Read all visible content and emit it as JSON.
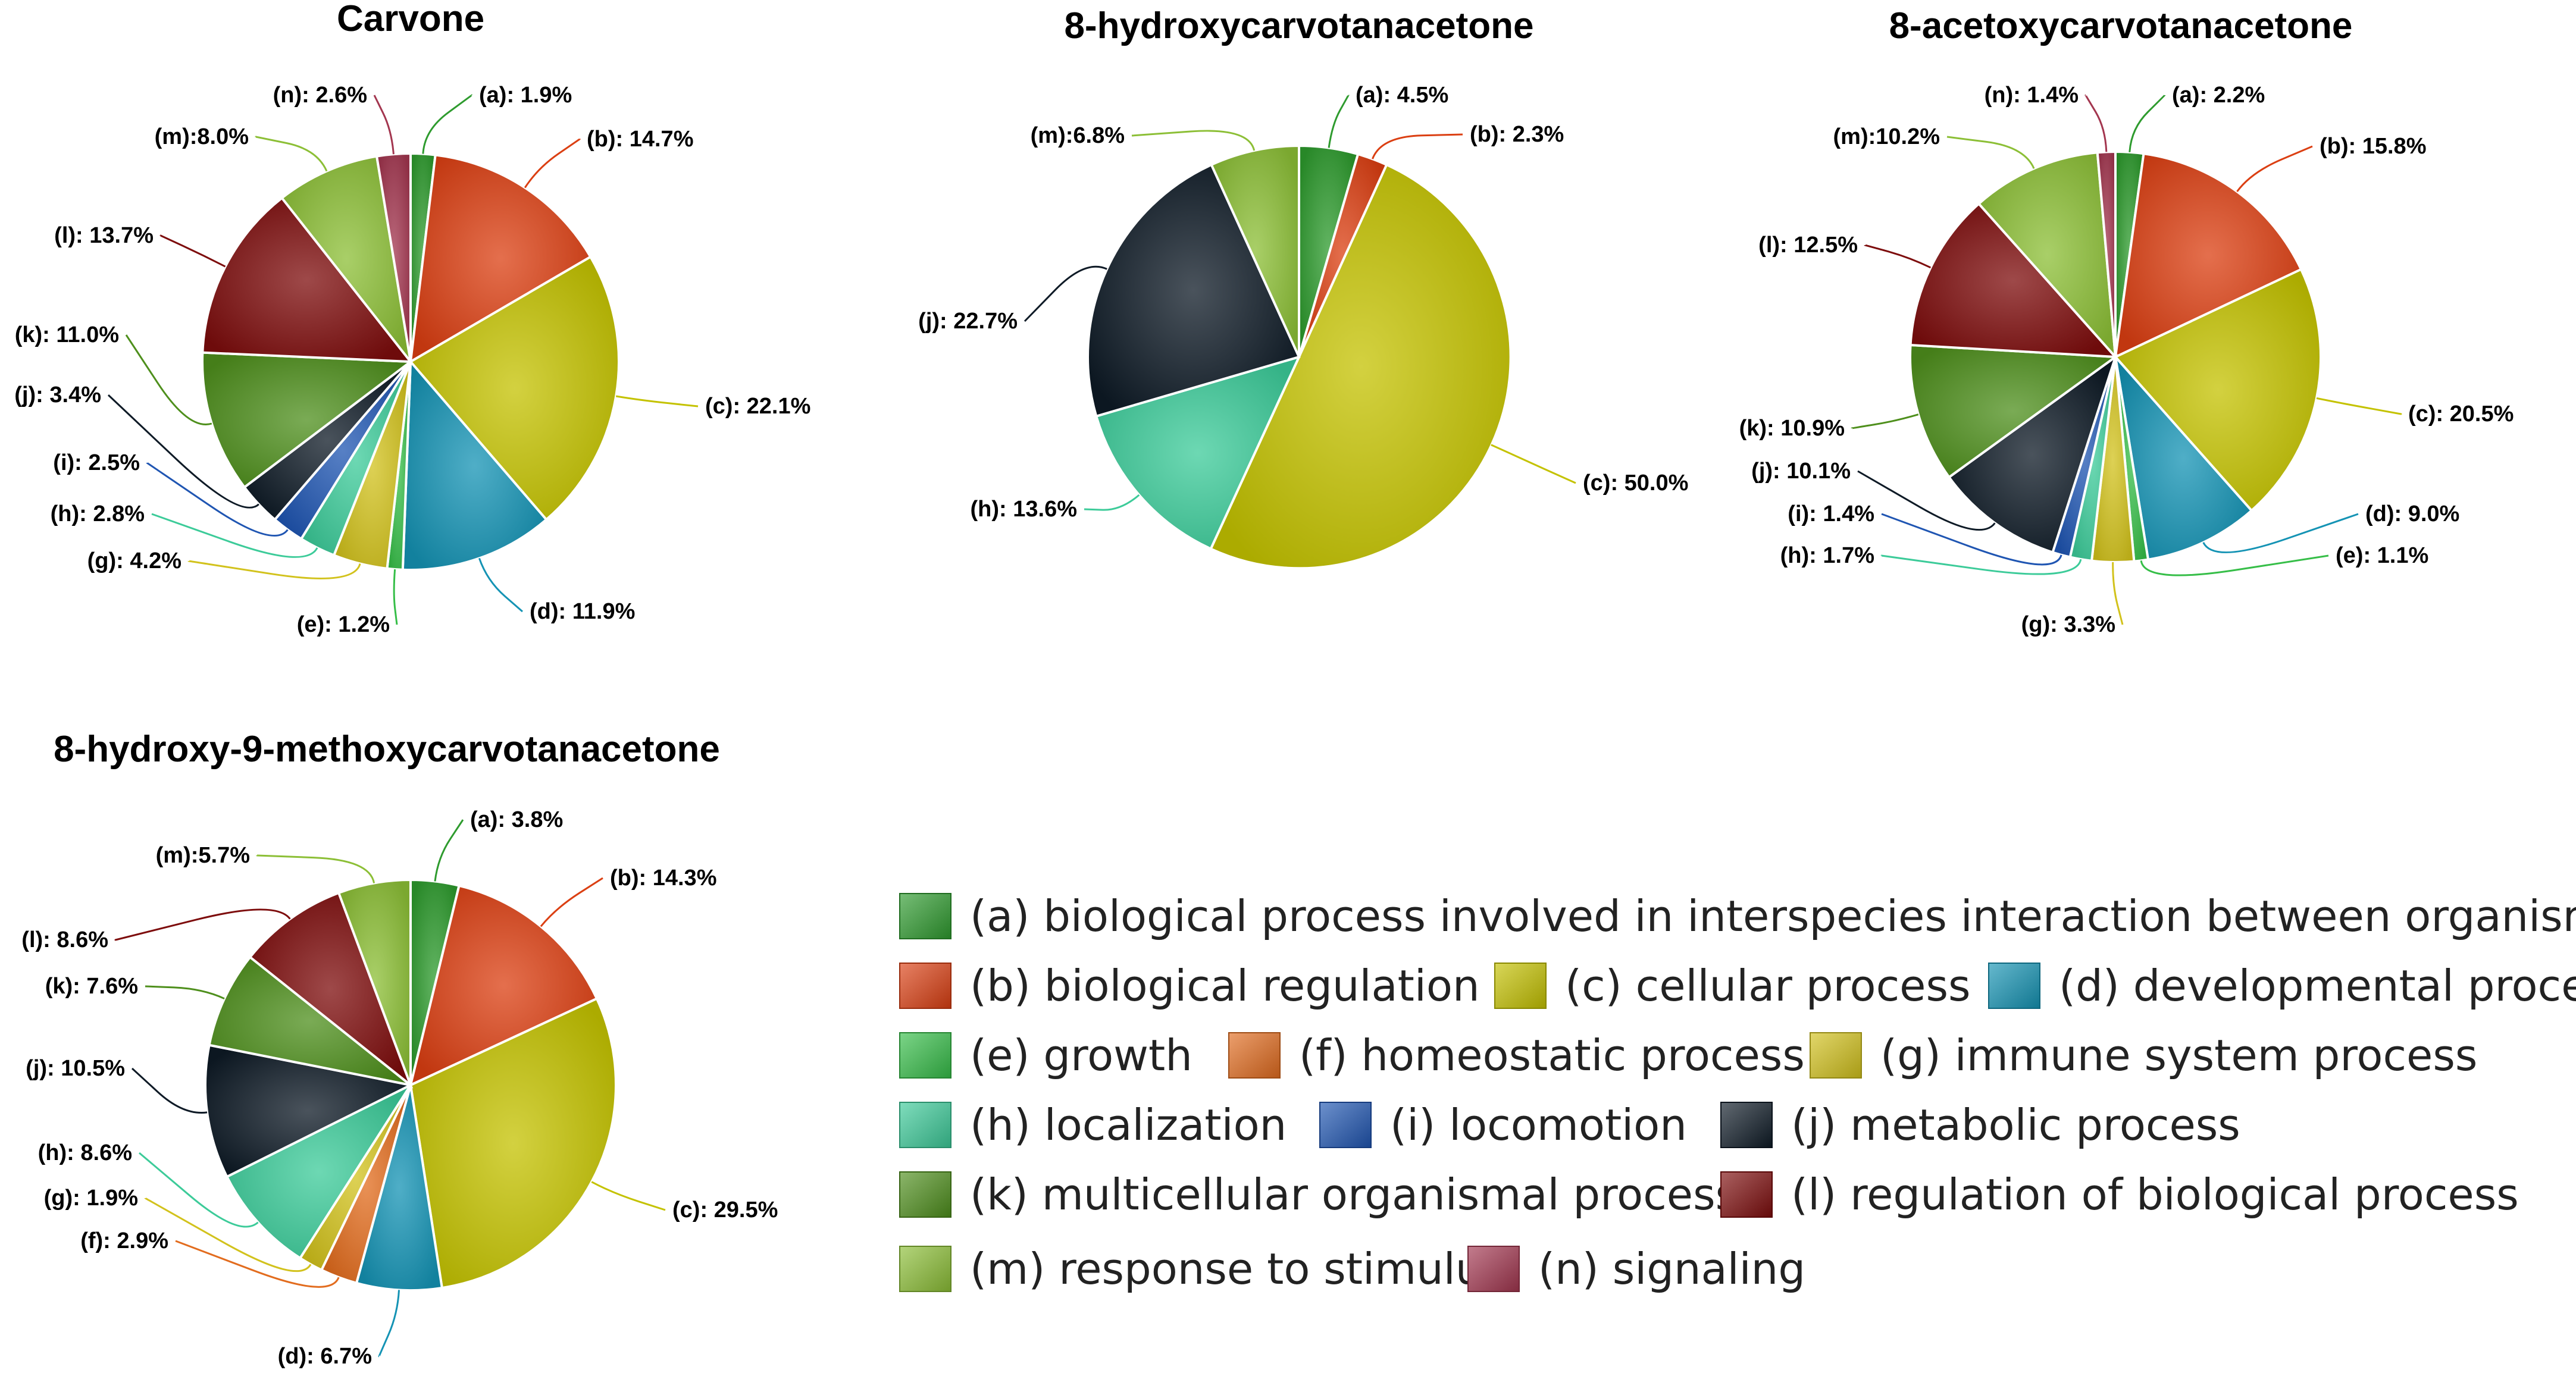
{
  "colors": {
    "a": "#2E9B2E",
    "b": "#DB3F12",
    "c": "#C4C200",
    "d": "#1493B4",
    "e": "#36BE48",
    "f": "#E26C1E",
    "g": "#D2C21C",
    "h": "#3CCB99",
    "i": "#1F55B2",
    "j": "#0E1A26",
    "k": "#4E8F1C",
    "l": "#7D0C0C",
    "m": "#8CBF36",
    "n": "#A3364F"
  },
  "legend": [
    {
      "key": "a",
      "label": "(a) biological process involved in interspecies interaction between organisms"
    },
    {
      "key": "b",
      "label": "(b) biological regulation"
    },
    {
      "key": "c",
      "label": "(c) cellular process"
    },
    {
      "key": "d",
      "label": "(d) developmental process"
    },
    {
      "key": "e",
      "label": "(e) growth"
    },
    {
      "key": "f",
      "label": "(f) homeostatic process"
    },
    {
      "key": "g",
      "label": "(g) immune system process"
    },
    {
      "key": "h",
      "label": "(h) localization"
    },
    {
      "key": "i",
      "label": "(i) locomotion"
    },
    {
      "key": "j",
      "label": "(j) metabolic process"
    },
    {
      "key": "k",
      "label": "(k) multicellular organismal process"
    },
    {
      "key": "l",
      "label": "(l) regulation of biological process"
    },
    {
      "key": "m",
      "label": "(m) response to stimulus"
    },
    {
      "key": "n",
      "label": "(n) signaling"
    }
  ],
  "chart_data": [
    {
      "type": "pie",
      "title": "Carvone",
      "slices": [
        {
          "key": "a",
          "value": 1.9,
          "label": "(a): 1.9%"
        },
        {
          "key": "b",
          "value": 14.7,
          "label": "(b): 14.7%"
        },
        {
          "key": "c",
          "value": 22.1,
          "label": "(c): 22.1%"
        },
        {
          "key": "d",
          "value": 11.9,
          "label": "(d): 11.9%"
        },
        {
          "key": "e",
          "value": 1.2,
          "label": "(e): 1.2%"
        },
        {
          "key": "g",
          "value": 4.2,
          "label": "(g): 4.2%"
        },
        {
          "key": "h",
          "value": 2.8,
          "label": "(h): 2.8%"
        },
        {
          "key": "i",
          "value": 2.5,
          "label": "(i): 2.5%"
        },
        {
          "key": "j",
          "value": 3.4,
          "label": "(j): 3.4%"
        },
        {
          "key": "k",
          "value": 11.0,
          "label": "(k): 11.0%"
        },
        {
          "key": "l",
          "value": 13.7,
          "label": "(l): 13.7%"
        },
        {
          "key": "m",
          "value": 8.0,
          "label": "(m):8.0%"
        },
        {
          "key": "n",
          "value": 2.6,
          "label": "(n): 2.6%"
        }
      ]
    },
    {
      "type": "pie",
      "title": "8-hydroxycarvotanacetone",
      "slices": [
        {
          "key": "a",
          "value": 4.5,
          "label": "(a): 4.5%"
        },
        {
          "key": "b",
          "value": 2.3,
          "label": "(b): 2.3%"
        },
        {
          "key": "c",
          "value": 50.0,
          "label": "(c): 50.0%"
        },
        {
          "key": "h",
          "value": 13.6,
          "label": "(h): 13.6%"
        },
        {
          "key": "j",
          "value": 22.7,
          "label": "(j): 22.7%"
        },
        {
          "key": "m",
          "value": 6.8,
          "label": "(m):6.8%"
        }
      ]
    },
    {
      "type": "pie",
      "title": "8-acetoxycarvotanacetone",
      "slices": [
        {
          "key": "a",
          "value": 2.2,
          "label": "(a): 2.2%"
        },
        {
          "key": "b",
          "value": 15.8,
          "label": "(b): 15.8%"
        },
        {
          "key": "c",
          "value": 20.5,
          "label": "(c): 20.5%"
        },
        {
          "key": "d",
          "value": 9.0,
          "label": "(d): 9.0%"
        },
        {
          "key": "e",
          "value": 1.1,
          "label": "(e): 1.1%"
        },
        {
          "key": "g",
          "value": 3.3,
          "label": "(g): 3.3%"
        },
        {
          "key": "h",
          "value": 1.7,
          "label": "(h): 1.7%"
        },
        {
          "key": "i",
          "value": 1.4,
          "label": "(i): 1.4%"
        },
        {
          "key": "j",
          "value": 10.1,
          "label": "(j): 10.1%"
        },
        {
          "key": "k",
          "value": 10.9,
          "label": "(k): 10.9%"
        },
        {
          "key": "l",
          "value": 12.5,
          "label": "(l): 12.5%"
        },
        {
          "key": "m",
          "value": 10.2,
          "label": "(m):10.2%"
        },
        {
          "key": "n",
          "value": 1.4,
          "label": "(n): 1.4%"
        }
      ]
    },
    {
      "type": "pie",
      "title": "8-hydroxy-9-methoxycarvotanacetone",
      "slices": [
        {
          "key": "a",
          "value": 3.8,
          "label": "(a): 3.8%"
        },
        {
          "key": "b",
          "value": 14.3,
          "label": "(b): 14.3%"
        },
        {
          "key": "c",
          "value": 29.5,
          "label": "(c): 29.5%"
        },
        {
          "key": "d",
          "value": 6.7,
          "label": "(d): 6.7%"
        },
        {
          "key": "f",
          "value": 2.9,
          "label": "(f): 2.9%"
        },
        {
          "key": "g",
          "value": 1.9,
          "label": "(g): 1.9%"
        },
        {
          "key": "h",
          "value": 8.6,
          "label": "(h): 8.6%"
        },
        {
          "key": "j",
          "value": 10.5,
          "label": "(j): 10.5%"
        },
        {
          "key": "k",
          "value": 7.6,
          "label": "(k): 7.6%"
        },
        {
          "key": "l",
          "value": 8.6,
          "label": "(l): 8.6%"
        },
        {
          "key": "m",
          "value": 5.7,
          "label": "(m):5.7%"
        }
      ]
    }
  ]
}
